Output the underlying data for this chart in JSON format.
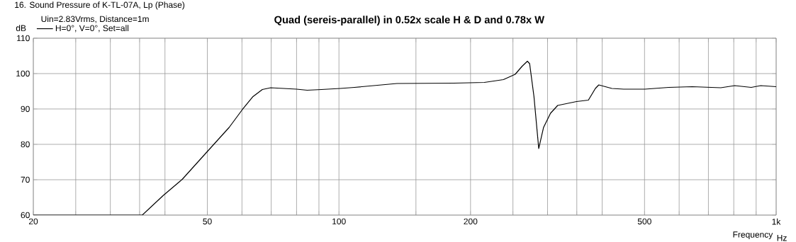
{
  "chart_data": {
    "type": "line",
    "title": "Quad (sereis-parallel) in 0.52x scale H & D and 0.78x W",
    "subtitle": "Uin=2.83Vrms, Distance=1m",
    "annotations": [
      "16. Sound Pressure of K-TL-07A, Lp (Phase)",
      "Hz"
    ],
    "xlabel": "Frequency",
    "ylabel": "dB",
    "log": "x",
    "grid": true,
    "legend": "top left",
    "marker": "none",
    "line_style": "solid",
    "xlim": [
      20,
      1000
    ],
    "ylim": [
      60,
      110
    ],
    "xticks": [
      20,
      {
        "value": 25,
        "label": null
      },
      {
        "value": 30,
        "label": null
      },
      {
        "value": 35,
        "label": null
      },
      {
        "value": 40,
        "label": null
      },
      50,
      {
        "value": 60,
        "label": null
      },
      {
        "value": 70,
        "label": null
      },
      {
        "value": 80,
        "label": null
      },
      {
        "value": 90,
        "label": null
      },
      100,
      {
        "value": 150,
        "label": null
      },
      200,
      {
        "value": 250,
        "label": null
      },
      {
        "value": 300,
        "label": null
      },
      {
        "value": 350,
        "label": null
      },
      {
        "value": 400,
        "label": null
      },
      500,
      {
        "value": 600,
        "label": null
      },
      {
        "value": 700,
        "label": null
      },
      {
        "value": 800,
        "label": null
      },
      {
        "value": 900,
        "label": null
      },
      {
        "value": 1000,
        "label": "1k"
      }
    ],
    "yticks": [
      60,
      70,
      80,
      90,
      100,
      110
    ],
    "series": [
      {
        "name": "H=0°, V=0°, Set=all",
        "color": "#000000",
        "x": [
          20,
          35.5,
          39.6,
          43.8,
          49.6,
          56.1,
          60.1,
          63.6,
          66.8,
          69.8,
          80,
          84.6,
          91.2,
          100.7,
          108.5,
          135.7,
          183,
          215,
          237.8,
          253,
          262.5,
          269.8,
          273,
          279.3,
          286.4,
          293.8,
          304.8,
          316.5,
          349.5,
          372,
          386,
          393,
          421,
          448,
          501,
          568,
          643,
          747,
          804,
          877,
          922,
          1000
        ],
        "values": [
          60,
          60,
          65.5,
          70.1,
          77.5,
          84.8,
          89.8,
          93.5,
          95.5,
          96.0,
          95.6,
          95.3,
          95.5,
          95.8,
          96.1,
          97.2,
          97.3,
          97.5,
          98.3,
          99.8,
          102.1,
          103.5,
          102.8,
          93.5,
          78.8,
          84.8,
          88.8,
          91.0,
          92.1,
          92.5,
          95.8,
          96.8,
          95.8,
          95.6,
          95.6,
          96.1,
          96.3,
          96.0,
          96.6,
          96.1,
          96.6,
          96.3
        ]
      }
    ]
  }
}
